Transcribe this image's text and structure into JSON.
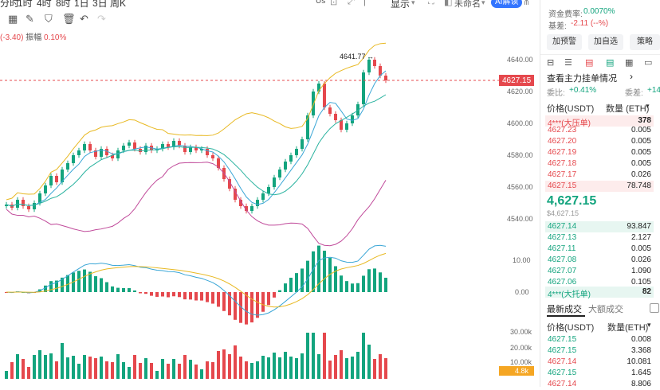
{
  "toolbar": {
    "timeframes": [
      "分时",
      "1时",
      "4时",
      "8时",
      "1日",
      "3日",
      "周K"
    ],
    "right_us": "Us",
    "display": "显示",
    "unnamed": "未命名",
    "ai": "AI解读"
  },
  "header": {
    "change_text": "(-3.40)",
    "amp_label": "振幅",
    "amp_value": "0.10%"
  },
  "price_axis": {
    "main_ticks": [
      "4640.00",
      "4620.00",
      "4600.00",
      "4580.00",
      "4560.00",
      "4540.00"
    ],
    "current_price_tag": "4627.15",
    "high_label": "4641.77",
    "macd_ticks": [
      "10.00",
      "0.00"
    ],
    "vol_ticks": [
      "30.00k",
      "20.00k",
      "10.00k"
    ],
    "vol_tag": "4.8k"
  },
  "chart_data": {
    "type": "candlestick",
    "series": [
      {
        "name": "",
        "values": [
          4549,
          4547,
          4552,
          4548,
          4546,
          4550,
          4556,
          4561,
          4567,
          4563,
          4571,
          4575,
          4580,
          4583,
          4587,
          4583,
          4579,
          4584,
          4580,
          4578,
          4583,
          4586,
          4588,
          4584,
          4582,
          4586,
          4583,
          4584,
          4587,
          4585,
          4589,
          4586,
          4582,
          4585,
          4583,
          4584,
          4580,
          4578,
          4572,
          4565,
          4559,
          4552,
          4548,
          4545,
          4548,
          4552,
          4556,
          4560,
          4566,
          4571,
          4576,
          4580,
          4584,
          4590,
          4605,
          4620,
          4625,
          4610,
          4606,
          4602,
          4596,
          4600,
          4605,
          4612,
          4632,
          4640,
          4636,
          4630,
          4627
        ]
      }
    ],
    "ylim": [
      4534,
      4645
    ],
    "price_ticks": [
      4640,
      4620,
      4600,
      4580,
      4560,
      4540
    ],
    "macd_ticks": [
      10,
      0
    ],
    "volume_ticks_k": [
      30,
      20,
      10
    ]
  },
  "right": {
    "funding_label": "资金费率:",
    "funding_value": "0.0070%",
    "basis_label": "基差:",
    "basis_value": "-2.11 (--%)",
    "btn_alert": "加预警",
    "btn_fav": "加自选",
    "btn_strategy": "策略",
    "view_orders": "查看主力挂单情况",
    "ratio_label": "委比:",
    "ratio_value": "+0.41%",
    "diff_label": "委差:",
    "diff_value": "+14",
    "price_header": "价格(USDT)",
    "qty_header": "数量 (ETH)",
    "ask_big": {
      "price": "4***(大压单)",
      "qty": "378"
    },
    "asks": [
      {
        "price": "4627.23",
        "qty": "0.005"
      },
      {
        "price": "4627.20",
        "qty": "0.005"
      },
      {
        "price": "4627.19",
        "qty": "0.005"
      },
      {
        "price": "4627.18",
        "qty": "0.005"
      },
      {
        "price": "4627.17",
        "qty": "0.026"
      },
      {
        "price": "4627.15",
        "qty": "78.748"
      }
    ],
    "last_price": "4,627.15",
    "last_usd": "$4,627.15",
    "bids": [
      {
        "price": "4627.14",
        "qty": "93.847"
      },
      {
        "price": "4627.13",
        "qty": "2.127"
      },
      {
        "price": "4627.11",
        "qty": "0.005"
      },
      {
        "price": "4627.08",
        "qty": "0.026"
      },
      {
        "price": "4627.07",
        "qty": "1.090"
      },
      {
        "price": "4627.06",
        "qty": "0.105"
      }
    ],
    "bid_big": {
      "price": "4***(大托单)",
      "qty": "82"
    },
    "trades_tab": "最新成交",
    "big_trades_tab": "大额成交",
    "trades_price_header": "价格(USDT)",
    "trades_qty_header": "数量(ETH)",
    "trades": [
      {
        "price": "4627.15",
        "qty": "0.008",
        "color": "#13a47e"
      },
      {
        "price": "4627.15",
        "qty": "3.368",
        "color": "#13a47e"
      },
      {
        "price": "4627.14",
        "qty": "10.081",
        "color": "#e5484d"
      },
      {
        "price": "4627.15",
        "qty": "1.645",
        "color": "#13a47e"
      },
      {
        "price": "4627.14",
        "qty": "8.806",
        "color": "#e5484d"
      }
    ]
  },
  "colors": {
    "up": "#13a47e",
    "down": "#e5484d",
    "accent": "#3375ff"
  }
}
